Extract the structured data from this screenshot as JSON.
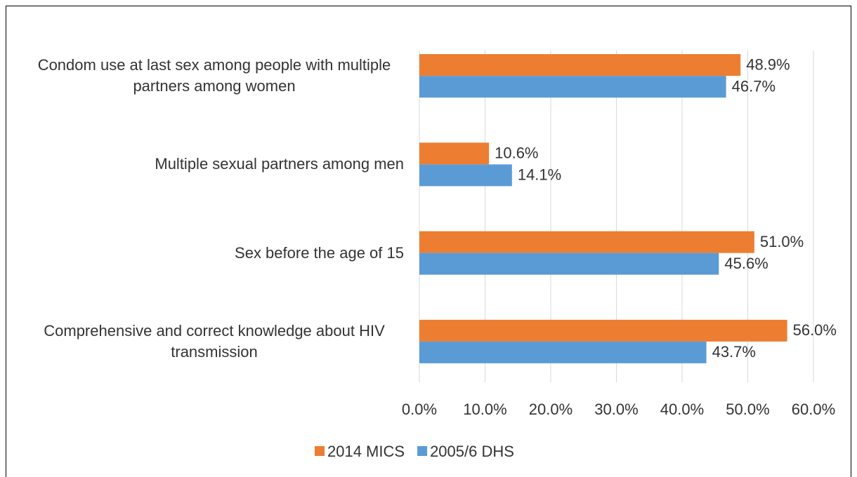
{
  "chart_data": {
    "type": "bar",
    "orientation": "horizontal",
    "categories": [
      "Condom use at last sex among people with multiple partners among women",
      "Multiple sexual partners among men",
      "Sex before the age of 15",
      "Comprehensive and correct knowledge about HIV transmission"
    ],
    "series": [
      {
        "name": "2014 MICS",
        "color": "#ed7d31",
        "values": [
          48.9,
          10.6,
          51.0,
          56.0
        ],
        "value_labels": [
          "48.9%",
          "10.6%",
          "51.0%",
          "56.0%"
        ]
      },
      {
        "name": "2005/6 DHS",
        "color": "#5b9bd5",
        "values": [
          46.7,
          14.1,
          45.6,
          43.7
        ],
        "value_labels": [
          "46.7%",
          "14.1%",
          "45.6%",
          "43.7%"
        ]
      }
    ],
    "xlim": [
      0,
      60
    ],
    "xticks": [
      {
        "value": 0,
        "label": "0.0%"
      },
      {
        "value": 10,
        "label": "10.0%"
      },
      {
        "value": 20,
        "label": "20.0%"
      },
      {
        "value": 30,
        "label": "30.0%"
      },
      {
        "value": 40,
        "label": "40.0%"
      },
      {
        "value": 50,
        "label": "50.0%"
      },
      {
        "value": 60,
        "label": "60.0%"
      }
    ],
    "grid": true,
    "legend": "bottom"
  }
}
